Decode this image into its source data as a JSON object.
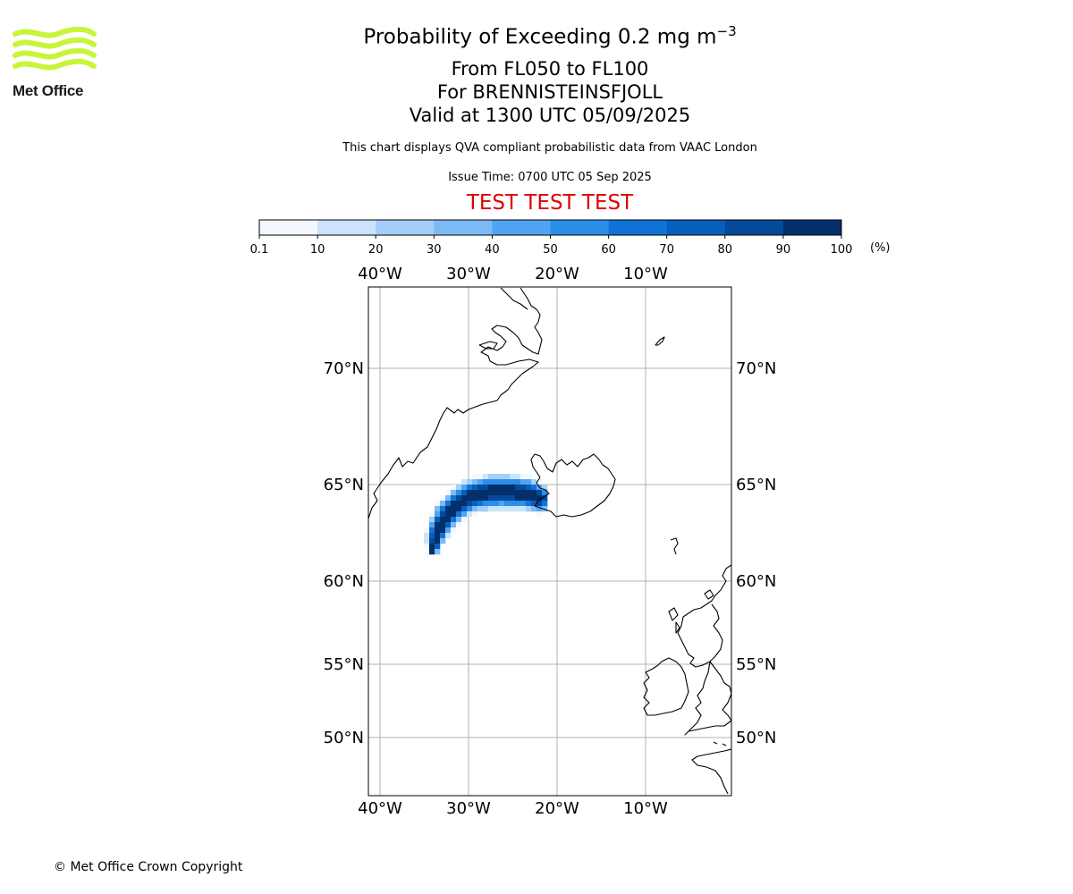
{
  "title": {
    "main_prefix": "Probability of Exceeding 0.2 mg m",
    "main_exponent": "−3",
    "line2": "From FL050 to FL100",
    "line3": "For BRENNISTEINSFJOLL",
    "line4": "Valid at 1300 UTC 05/09/2025"
  },
  "subtitle": "This chart displays QVA compliant probabilistic data from VAAC London",
  "issue_time": "Issue Time: 0700 UTC 05 Sep 2025",
  "test_banner": "TEST TEST TEST",
  "logo": {
    "text": "Met Office",
    "color": "#c8f53a"
  },
  "colorbar": {
    "ticks": [
      "0.1",
      "10",
      "20",
      "30",
      "40",
      "50",
      "60",
      "70",
      "80",
      "90",
      "100"
    ],
    "colors": [
      "#f2f8fe",
      "#cbe4fb",
      "#a4cff8",
      "#7cbaf6",
      "#51a4f4",
      "#2a8ee9",
      "#0f74d6",
      "#075fbd",
      "#054a9a",
      "#032f6b"
    ],
    "units": "(%)"
  },
  "map": {
    "lon_labels": [
      "40°W",
      "30°W",
      "20°W",
      "10°W"
    ],
    "lat_labels": [
      "70°N",
      "65°N",
      "60°N",
      "55°N",
      "50°N"
    ],
    "lon_values": [
      -40,
      -30,
      -20,
      -10
    ],
    "lat_values": [
      70,
      65,
      60,
      55,
      50
    ]
  },
  "footer": "© Met Office Crown Copyright"
}
